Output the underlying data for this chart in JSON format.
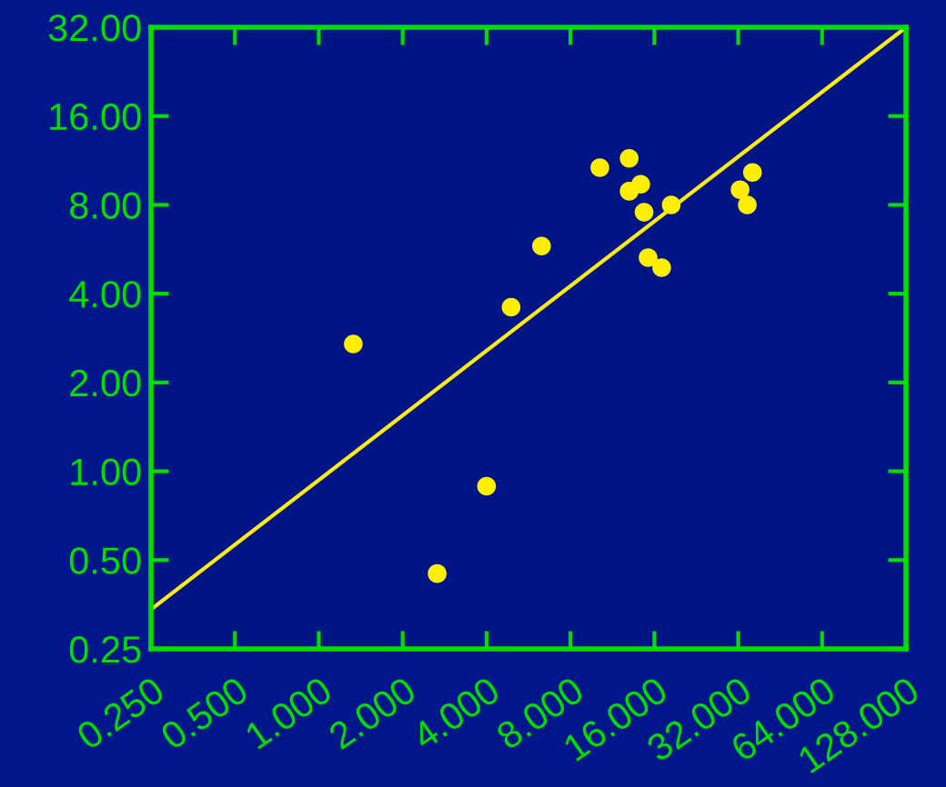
{
  "chart_data": {
    "type": "scatter",
    "log": "xy",
    "grid": false,
    "marker": "circle",
    "xlim": [
      0.25,
      128
    ],
    "ylim": [
      0.25,
      32
    ],
    "xticks": [
      {
        "value": 0.25,
        "label": "0.250"
      },
      {
        "value": 0.5,
        "label": "0.500"
      },
      {
        "value": 1,
        "label": "1.000"
      },
      {
        "value": 2,
        "label": "2.000"
      },
      {
        "value": 4,
        "label": "4.000"
      },
      {
        "value": 8,
        "label": "8.000"
      },
      {
        "value": 16,
        "label": "16.000"
      },
      {
        "value": 32,
        "label": "32.000"
      },
      {
        "value": 64,
        "label": "64.000"
      },
      {
        "value": 128,
        "label": "128.000"
      }
    ],
    "yticks": [
      {
        "value": 0.25,
        "label": "0.25"
      },
      {
        "value": 0.5,
        "label": "0.50"
      },
      {
        "value": 1,
        "label": "1.00"
      },
      {
        "value": 2,
        "label": "2.00"
      },
      {
        "value": 4,
        "label": "4.00"
      },
      {
        "value": 8,
        "label": "8.00"
      },
      {
        "value": 16,
        "label": "16.00"
      },
      {
        "value": 32,
        "label": "32.00"
      }
    ],
    "series": [
      {
        "color": "#ffee00",
        "x": [
          1.33,
          2.66,
          4.0,
          4.9,
          6.3,
          10.2,
          13.0,
          13.0,
          14.3,
          14.7,
          18.4,
          15.2,
          17.0,
          32.5,
          36.0,
          34.5
        ],
        "values": [
          2.7,
          0.45,
          0.89,
          3.6,
          5.8,
          10.7,
          11.5,
          8.9,
          9.4,
          7.55,
          8.0,
          5.3,
          4.9,
          9.0,
          10.3,
          8.0
        ]
      },
      {
        "type": "line",
        "color": "#ffee00",
        "x": [
          0.25,
          128
        ],
        "values": [
          0.34,
          32
        ],
        "marker": "none",
        "line_style": "solid"
      }
    ]
  }
}
